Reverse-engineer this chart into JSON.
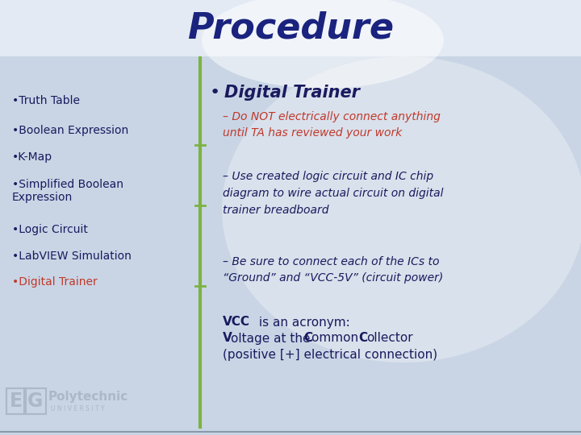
{
  "title": "Procedure",
  "title_color": "#1a237e",
  "title_fontsize": 32,
  "bg_color": "#cdd8e8",
  "left_items": [
    {
      "text": "•Truth Table",
      "color": "#1a1a5e"
    },
    {
      "text": "•Boolean Expression",
      "color": "#1a1a5e"
    },
    {
      "text": "•K-Map",
      "color": "#1a1a5e"
    },
    {
      "text": "•Simplified Boolean\nExpression",
      "color": "#1a1a5e"
    },
    {
      "text": "•Logic Circuit",
      "color": "#1a1a5e"
    },
    {
      "text": "•LabVIEW Simulation",
      "color": "#1a1a5e"
    },
    {
      "text": "•Digital Trainer",
      "color": "#c0392b"
    }
  ],
  "right_bullet": "Digital Trainer",
  "right_bullet_color": "#1a1a5e",
  "sub_items": [
    {
      "text": "Do NOT electrically connect anything\nuntil TA has reviewed your work",
      "color": "#c0392b"
    },
    {
      "text": "Use created logic circuit and IC chip\ndiagram to wire actual circuit on digital\ntrainer breadboard",
      "color": "#1a1a5e"
    },
    {
      "text": "Be sure to connect each of the ICs to\n“Ground” and “VCC-5V” (circuit power)",
      "color": "#1a1a5e"
    }
  ],
  "vcc_color": "#1a1a5e",
  "divider_color": "#7cb342",
  "logo_color": "#aab8c8",
  "border_color": "#8899aa"
}
